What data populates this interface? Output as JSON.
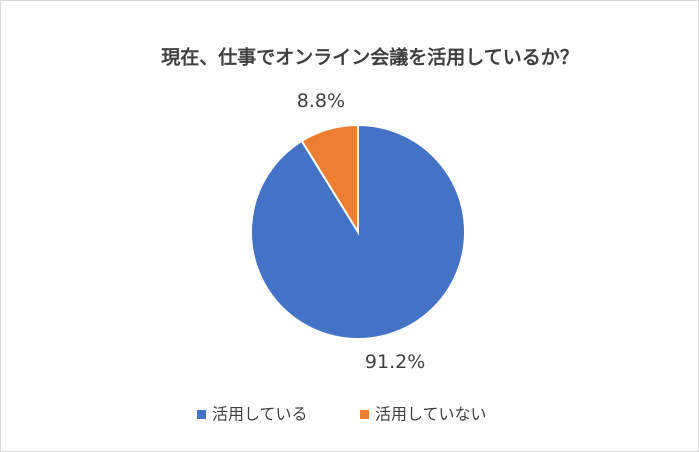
{
  "chart_data": {
    "type": "pie",
    "title": "現在、仕事でオンライン会議を活用しているか？",
    "categories": [
      "活用している",
      "活用していない"
    ],
    "values": [
      91.2,
      8.8
    ],
    "value_labels": [
      "91.2%",
      "8.8%"
    ],
    "colors": [
      "#4472c4",
      "#ed7d31"
    ]
  }
}
